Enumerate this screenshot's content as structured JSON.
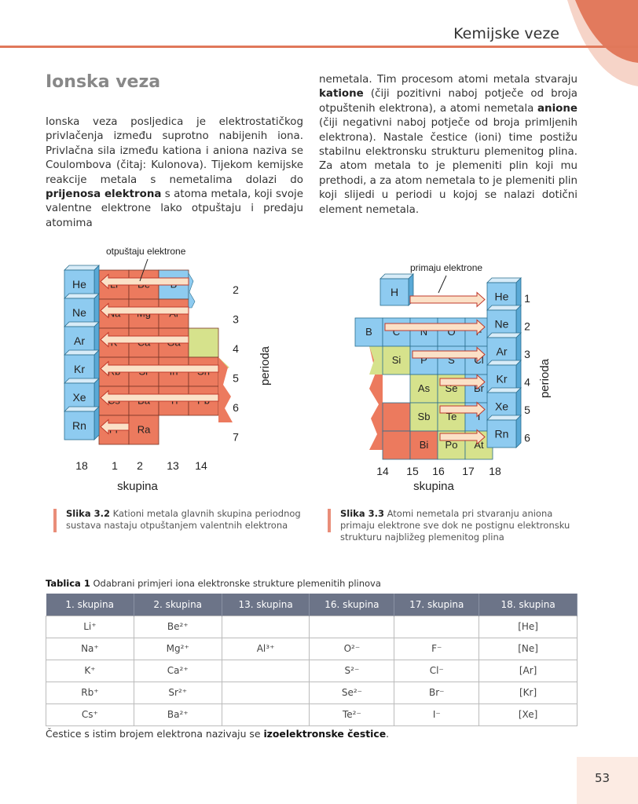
{
  "header": {
    "title": "Kemijske veze"
  },
  "section": {
    "heading": "Ionska veza"
  },
  "text": {
    "left_p1": "Ionska veza posljedica je elektrostatičkog privlačenja između suprotno nabijenih iona. Privlačna sila između kationa i aniona naziva se Coulombova (čitaj: Kulonova). Tijekom kemijske reakcije metala s nemetalima dolazi do ",
    "left_bold": "prijenosa elektrona",
    "left_p2": " s atoma metala, koji svoje valentne elektrone lako otpuštaju i predaju atomima",
    "right_p1": "nemetala. Tim procesom atomi metala stvaraju ",
    "right_b1": "katione",
    "right_p2": " (čiji pozitivni naboj potječe od broja otpuštenih elektrona), a atomi nemetala ",
    "right_b2": "anione",
    "right_p3": " (čiji negativni naboj potječe od broja primljenih elektrona). Nastale čestice (ioni) time postižu stabilnu elektronsku strukturu plemenitog plina. Za atom metala to je plemeniti plin koji mu prethodi, a za atom nemetala to je plemeniti plin koji slijedi u periodi u kojoj se nalazi dotični element nemetala."
  },
  "figure1": {
    "top_label": "otpuštaju elektrone",
    "noble": [
      "He",
      "Ne",
      "Ar",
      "Kr",
      "Xe",
      "Rn"
    ],
    "cells": [
      [
        "Li",
        "Be",
        "B",
        ""
      ],
      [
        "Na",
        "Mg",
        "Al",
        ""
      ],
      [
        "K",
        "Ca",
        "Ga",
        ""
      ],
      [
        "Rb",
        "Sr",
        "In",
        "Sn"
      ],
      [
        "Cs",
        "Ba",
        "Tl",
        "Pb"
      ],
      [
        "Fr",
        "Ra",
        "",
        ""
      ]
    ],
    "periods": [
      "2",
      "3",
      "4",
      "5",
      "6",
      "7"
    ],
    "period_label": "perioda",
    "groups": [
      "18",
      "1",
      "2",
      "13",
      "14"
    ],
    "group_label": "skupina"
  },
  "figure2": {
    "top_label": "primaju elektrone",
    "h_label": "H",
    "noble": [
      "He",
      "Ne",
      "Ar",
      "Kr",
      "Xe",
      "Rn"
    ],
    "cells": [
      [
        "B",
        "C",
        "N",
        "O",
        "F"
      ],
      [
        "",
        "Si",
        "P",
        "S",
        "Cl"
      ],
      [
        "",
        "",
        "As",
        "Se",
        "Br"
      ],
      [
        "",
        "",
        "Sb",
        "Te",
        "I"
      ],
      [
        "",
        "",
        "Bi",
        "Po",
        "At"
      ]
    ],
    "periods": [
      "1",
      "2",
      "3",
      "4",
      "5",
      "6"
    ],
    "period_label": "perioda",
    "groups": [
      "14",
      "15",
      "16",
      "17",
      "18"
    ],
    "group_label": "skupina"
  },
  "captions": {
    "fig1_label": "Slika 3.2",
    "fig1_text": " Kationi metala glavnih skupina periodnog sustava nastaju otpuštanjem valentnih elektrona",
    "fig2_label": "Slika 3.3",
    "fig2_text": " Atomi nemetala pri stvaranju aniona primaju elektrone sve dok ne postignu elektronsku strukturu najbližeg plemenitog plina"
  },
  "table": {
    "caption_label": "Tablica 1",
    "caption_text": " Odabrani primjeri iona elektronske strukture plemenitih plinova",
    "headers": [
      "1. skupina",
      "2. skupina",
      "13. skupina",
      "16. skupina",
      "17. skupina",
      "18. skupina"
    ],
    "rows": [
      [
        "Li⁺",
        "Be²⁺",
        "",
        "",
        "",
        "[He]"
      ],
      [
        "Na⁺",
        "Mg²⁺",
        "Al³⁺",
        "O²⁻",
        "F⁻",
        "[Ne]"
      ],
      [
        "K⁺",
        "Ca²⁺",
        "",
        "S²⁻",
        "Cl⁻",
        "[Ar]"
      ],
      [
        "Rb⁺",
        "Sr²⁺",
        "",
        "Se²⁻",
        "Br⁻",
        "[Kr]"
      ],
      [
        "Cs⁺",
        "Ba²⁺",
        "",
        "Te²⁻",
        "I⁻",
        "[Xe]"
      ]
    ]
  },
  "footnote": {
    "text": "Čestice s istim brojem elektrona nazivaju se ",
    "bold": "izoelektronske čestice",
    "end": "."
  },
  "page": {
    "number": "53"
  },
  "colors": {
    "accent": "#e0785a",
    "noble_blue": "#8ecbf0",
    "metal_red": "#ec7a5e",
    "nonmetal_green": "#d6e28c",
    "arrow_fill": "#fbe1c7"
  }
}
